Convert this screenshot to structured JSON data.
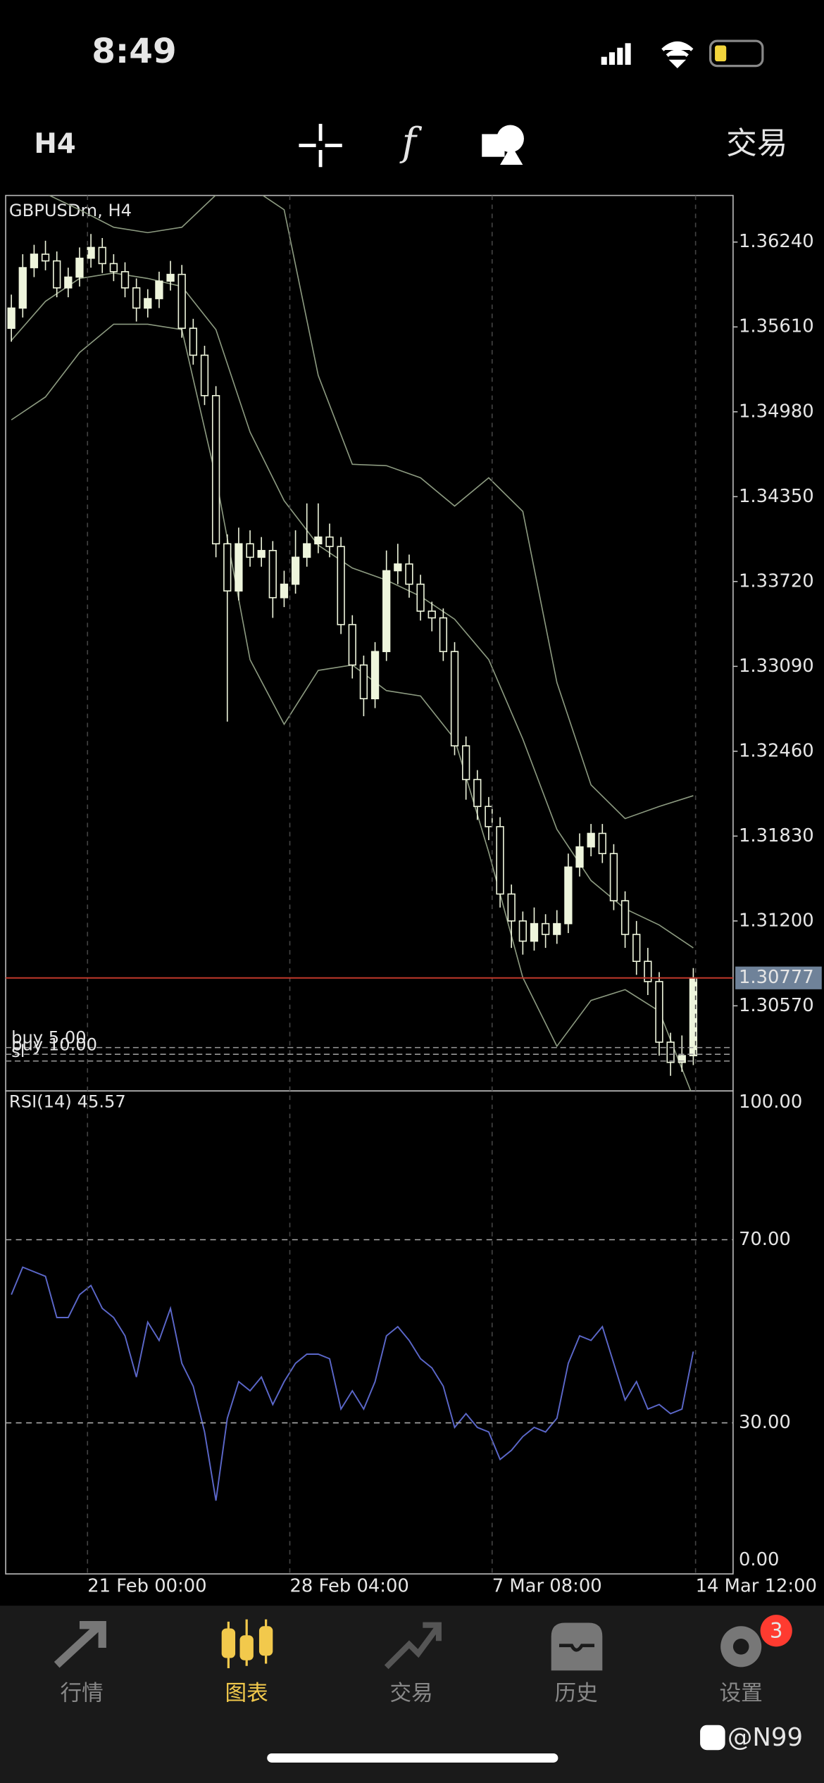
{
  "status_bar": {
    "time": "8:49"
  },
  "toolbar": {
    "timeframe": "H4",
    "trade": "交易"
  },
  "chart_data": [
    {
      "type": "candlestick",
      "title": "GBPUSDm, H4",
      "open": [
        1.356,
        1.3575,
        1.3605,
        1.3615,
        1.361,
        1.359,
        1.3598,
        1.3612,
        1.362,
        1.3608,
        1.3602,
        1.359,
        1.3575,
        1.3582,
        1.3595,
        1.36,
        1.356,
        1.354,
        1.351,
        1.34,
        1.3365,
        1.34,
        1.339,
        1.3395,
        1.336,
        1.337,
        1.339,
        1.34,
        1.3405,
        1.3398,
        1.334,
        1.331,
        1.3285,
        1.332,
        1.338,
        1.3385,
        1.337,
        1.335,
        1.3345,
        1.332,
        1.325,
        1.3225,
        1.3205,
        1.319,
        1.314,
        1.312,
        1.3105,
        1.3118,
        1.311,
        1.3118,
        1.316,
        1.3175,
        1.3185,
        1.317,
        1.3135,
        1.311,
        1.309,
        1.3075,
        1.303,
        1.3015,
        1.302
      ],
      "high": [
        1.3585,
        1.3615,
        1.3622,
        1.3625,
        1.3617,
        1.3605,
        1.362,
        1.363,
        1.3627,
        1.3615,
        1.3609,
        1.3597,
        1.3589,
        1.3602,
        1.361,
        1.3607,
        1.3567,
        1.3547,
        1.3517,
        1.3407,
        1.3412,
        1.341,
        1.3405,
        1.3402,
        1.338,
        1.341,
        1.343,
        1.343,
        1.3415,
        1.3405,
        1.3347,
        1.3317,
        1.3327,
        1.3395,
        1.34,
        1.3392,
        1.3377,
        1.3357,
        1.3352,
        1.3327,
        1.3257,
        1.3232,
        1.3212,
        1.3197,
        1.3147,
        1.3127,
        1.313,
        1.3125,
        1.3128,
        1.317,
        1.3185,
        1.3192,
        1.3192,
        1.3177,
        1.3142,
        1.312,
        1.31,
        1.3082,
        1.3037,
        1.3035,
        1.3085
      ],
      "low": [
        1.355,
        1.3568,
        1.3598,
        1.3603,
        1.3583,
        1.3583,
        1.3591,
        1.3605,
        1.3601,
        1.3595,
        1.3583,
        1.3565,
        1.3568,
        1.3575,
        1.3588,
        1.3553,
        1.3533,
        1.3503,
        1.339,
        1.3268,
        1.3358,
        1.3383,
        1.3383,
        1.3345,
        1.3353,
        1.3363,
        1.3383,
        1.3393,
        1.339,
        1.3333,
        1.33,
        1.3272,
        1.3278,
        1.3313,
        1.337,
        1.336,
        1.3343,
        1.3335,
        1.3313,
        1.3243,
        1.321,
        1.3195,
        1.318,
        1.313,
        1.31,
        1.3095,
        1.3098,
        1.31,
        1.3103,
        1.3111,
        1.3153,
        1.3168,
        1.3163,
        1.3128,
        1.31,
        1.308,
        1.3065,
        1.302,
        1.3005,
        1.3008,
        1.3013
      ],
      "close": [
        1.3575,
        1.3605,
        1.3615,
        1.361,
        1.359,
        1.3598,
        1.3612,
        1.362,
        1.3608,
        1.3602,
        1.359,
        1.3575,
        1.3582,
        1.3595,
        1.36,
        1.356,
        1.354,
        1.351,
        1.34,
        1.3365,
        1.34,
        1.339,
        1.3395,
        1.336,
        1.337,
        1.339,
        1.34,
        1.3405,
        1.3398,
        1.334,
        1.331,
        1.3285,
        1.332,
        1.338,
        1.3385,
        1.337,
        1.335,
        1.3345,
        1.332,
        1.325,
        1.3225,
        1.3205,
        1.319,
        1.314,
        1.312,
        1.3105,
        1.3118,
        1.311,
        1.3118,
        1.316,
        1.3175,
        1.3185,
        1.317,
        1.3135,
        1.311,
        1.309,
        1.3075,
        1.303,
        1.3015,
        1.302,
        1.30777
      ],
      "color": "#eef5dc",
      "bands": {
        "color": "#8c9a80",
        "x": [
          0.5,
          3.5,
          6.5,
          9.5,
          12.5,
          15.5,
          18.5,
          21.5,
          24.5,
          27.5,
          30.5,
          33.5,
          36.5,
          39.5,
          42.5,
          45.5,
          48.5,
          51.5,
          54.5,
          57.5,
          60.5
        ],
        "upper": [
          1.3669,
          1.366,
          1.3648,
          1.3635,
          1.3631,
          1.3635,
          1.3659,
          1.3665,
          1.3648,
          1.3525,
          1.3459,
          1.3458,
          1.3449,
          1.3428,
          1.3449,
          1.3424,
          1.3297,
          1.3221,
          1.3196,
          1.3205,
          1.3213
        ],
        "middle": [
          1.3551,
          1.358,
          1.3597,
          1.3601,
          1.3597,
          1.3591,
          1.3559,
          1.3483,
          1.3432,
          1.3399,
          1.3382,
          1.3373,
          1.3361,
          1.3344,
          1.3314,
          1.3255,
          1.3188,
          1.315,
          1.3129,
          1.3117,
          1.31
        ],
        "lower": [
          1.3492,
          1.3509,
          1.3542,
          1.3563,
          1.3563,
          1.3559,
          1.3449,
          1.3314,
          1.3266,
          1.3306,
          1.331,
          1.3291,
          1.3287,
          1.3255,
          1.3171,
          1.3078,
          1.3027,
          1.3061,
          1.3069,
          1.3053,
          1.2989
        ]
      },
      "current_price": {
        "value": 1.30777,
        "label": "1.30777",
        "color": "#c0392b"
      },
      "orders": [
        {
          "label": "buy 5.00",
          "price": 1.3026
        },
        {
          "label": "buy 10.00",
          "price": 1.3021
        },
        {
          "label": "sl",
          "price": 1.3016
        }
      ],
      "xlim": [
        0,
        64
      ],
      "xticks": [
        {
          "value": 7.2,
          "label": "21 Feb 00:00"
        },
        {
          "value": 25,
          "label": "28 Feb 04:00"
        },
        {
          "value": 42.8,
          "label": "7 Mar 08:00"
        },
        {
          "value": 60.7,
          "label": "14 Mar 12:00"
        }
      ],
      "ylim": [
        1.29938,
        1.36586
      ],
      "yticks": [
        {
          "value": 1.3624,
          "label": "1.36240"
        },
        {
          "value": 1.3561,
          "label": "1.35610"
        },
        {
          "value": 1.3498,
          "label": "1.34980"
        },
        {
          "value": 1.3435,
          "label": "1.34350"
        },
        {
          "value": 1.3372,
          "label": "1.33720"
        },
        {
          "value": 1.3309,
          "label": "1.33090"
        },
        {
          "value": 1.3246,
          "label": "1.32460"
        },
        {
          "value": 1.3183,
          "label": "1.31830"
        },
        {
          "value": 1.312,
          "label": "1.31200"
        },
        {
          "value": 1.3057,
          "label": "1.30570"
        }
      ]
    },
    {
      "type": "line",
      "title": "RSI(14)",
      "series": [
        {
          "name": "RSI(14)",
          "color": "#5b67c9",
          "values": [
            58,
            64,
            63,
            62,
            53,
            53,
            58,
            60,
            55,
            53,
            49,
            40,
            52,
            48,
            55,
            43,
            38,
            28,
            13,
            31,
            39,
            37,
            40,
            34,
            39,
            43,
            45,
            45,
            44,
            33,
            37,
            33,
            39,
            49,
            51,
            48,
            44,
            42,
            38,
            29,
            32,
            29,
            28,
            22,
            24,
            27,
            29,
            28,
            31,
            43,
            49,
            48,
            51,
            43,
            35,
            39,
            33,
            34,
            32,
            33,
            45.57
          ]
        }
      ],
      "ylim": [
        -3,
        102.5
      ],
      "yticks": [
        {
          "value": 100,
          "label": "100.00"
        },
        {
          "value": 70,
          "label": "70.00"
        },
        {
          "value": 30,
          "label": "30.00"
        },
        {
          "value": 0,
          "label": "0.00"
        }
      ],
      "grid_levels": [
        70,
        30
      ]
    }
  ],
  "tab_bar": {
    "tabs": [
      "行情",
      "图表",
      "交易",
      "历史",
      "设置"
    ],
    "badge": "3"
  },
  "watermark": "@N99"
}
